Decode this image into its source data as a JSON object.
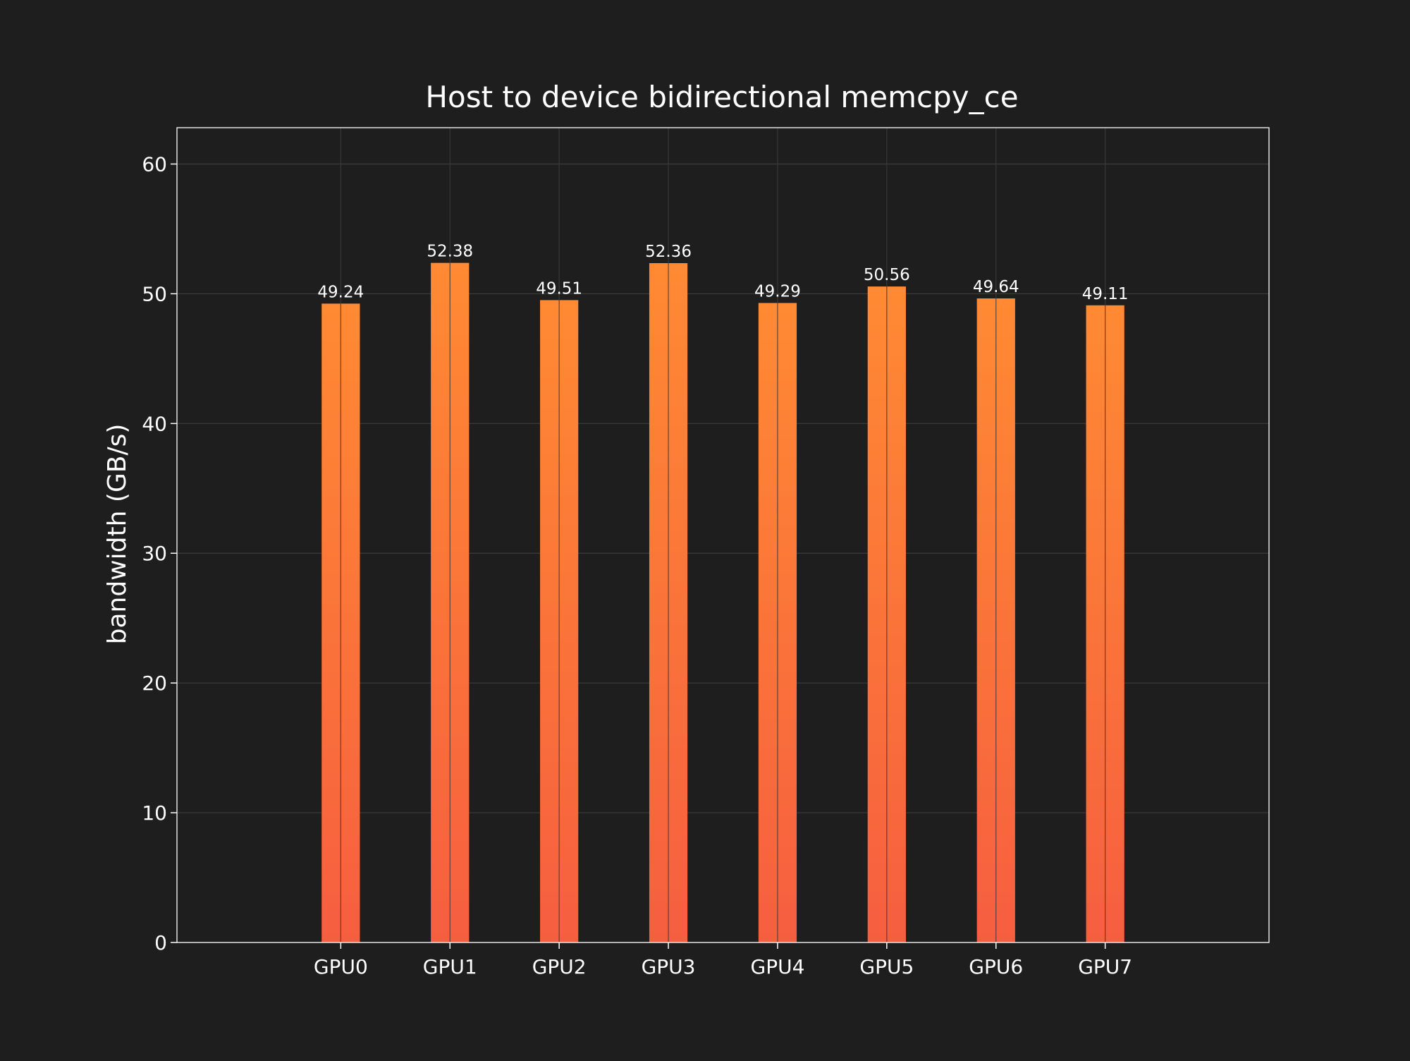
{
  "chart_data": {
    "type": "bar",
    "title": "Host to device bidirectional memcpy_ce",
    "xlabel": "",
    "ylabel": "bandwidth (GB/s)",
    "categories": [
      "GPU0",
      "GPU1",
      "GPU2",
      "GPU3",
      "GPU4",
      "GPU5",
      "GPU6",
      "GPU7"
    ],
    "values": [
      49.24,
      52.38,
      49.51,
      52.36,
      49.29,
      50.56,
      49.64,
      49.11
    ],
    "value_labels": [
      "49.24",
      "52.38",
      "49.51",
      "52.36",
      "49.29",
      "50.56",
      "49.64",
      "49.11"
    ],
    "ylim": [
      0,
      62.8
    ],
    "yticks": [
      0,
      10,
      20,
      30,
      40,
      50,
      60
    ],
    "ytick_labels": [
      "0",
      "10",
      "20",
      "30",
      "40",
      "50",
      "60"
    ],
    "grid": true,
    "colors": {
      "background": "#1e1e1e",
      "bar_top": "#ff8a33",
      "bar_bottom": "#f65e40",
      "grid": "#3c3c3c",
      "axes_border": "#ffffff",
      "text": "#ffffff"
    }
  }
}
